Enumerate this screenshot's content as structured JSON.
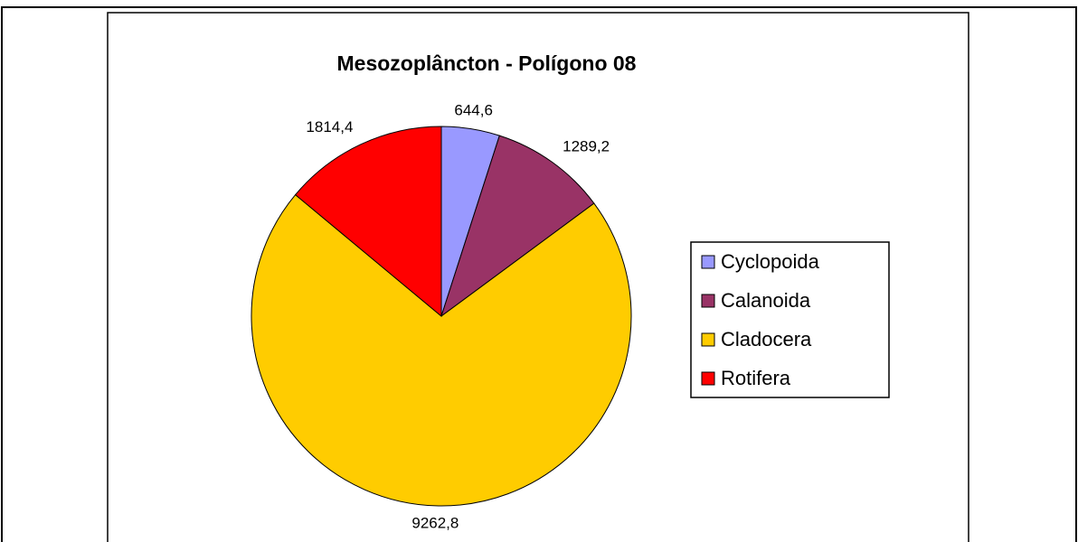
{
  "chart_data": {
    "type": "pie",
    "title": "Mesozoplâncton - Polígono 08",
    "categories": [
      "Cyclopoida",
      "Calanoida",
      "Cladocera",
      "Rotifera"
    ],
    "values": [
      644.6,
      1289.2,
      9262.8,
      1814.4
    ],
    "value_labels": [
      "644,6",
      "1289,2",
      "9262,8",
      "1814,4"
    ],
    "colors": [
      "#9999ff",
      "#993366",
      "#ffcc00",
      "#ff0000"
    ],
    "legend": "right"
  }
}
